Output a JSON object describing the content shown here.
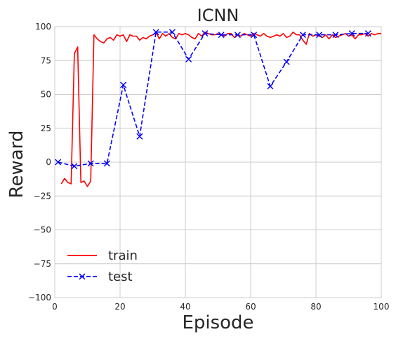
{
  "chart_data": {
    "type": "line",
    "title": "ICNN",
    "xlabel": "Episode",
    "ylabel": "Reward",
    "xlim": [
      0,
      100
    ],
    "ylim": [
      -100,
      100
    ],
    "xticks": [
      0,
      20,
      40,
      60,
      80,
      100
    ],
    "yticks": [
      -100,
      -75,
      -50,
      -25,
      0,
      25,
      50,
      75,
      100
    ],
    "xtick_labels": [
      "0",
      "20",
      "40",
      "60",
      "80",
      "100"
    ],
    "ytick_labels": [
      "−100",
      "−75",
      "−50",
      "−25",
      "0",
      "25",
      "50",
      "75",
      "100"
    ],
    "grid": true,
    "legend_position": "lower-left",
    "series": [
      {
        "name": "train",
        "color": "#ff0000",
        "style": "solid",
        "marker": "none",
        "x": [
          2,
          3,
          4,
          5,
          6,
          7,
          8,
          9,
          10,
          11,
          12,
          13,
          14,
          15,
          16,
          17,
          18,
          19,
          20,
          21,
          22,
          23,
          24,
          25,
          26,
          27,
          28,
          29,
          30,
          31,
          32,
          33,
          34,
          35,
          36,
          37,
          38,
          39,
          40,
          41,
          42,
          43,
          44,
          45,
          46,
          47,
          48,
          49,
          50,
          51,
          52,
          53,
          54,
          55,
          56,
          57,
          58,
          59,
          60,
          61,
          62,
          63,
          64,
          65,
          66,
          67,
          68,
          69,
          70,
          71,
          72,
          73,
          74,
          75,
          76,
          77,
          78,
          79,
          80,
          81,
          82,
          83,
          84,
          85,
          86,
          87,
          88,
          89,
          90,
          91,
          92,
          93,
          94,
          95,
          96,
          97,
          98,
          99,
          100
        ],
        "y": [
          -16,
          -12,
          -15,
          -16,
          80,
          85,
          -15,
          -14,
          -18,
          -14,
          94,
          91,
          89,
          88,
          91,
          92,
          90,
          94,
          93,
          94,
          89,
          94,
          93,
          93,
          90,
          92,
          91,
          93,
          94,
          96,
          91,
          95,
          93,
          95,
          92,
          91,
          95,
          94,
          95,
          94,
          92,
          91,
          95,
          93,
          96,
          95,
          94,
          94,
          95,
          94,
          93,
          95,
          95,
          92,
          94,
          93,
          95,
          94,
          93,
          95,
          94,
          93,
          95,
          93,
          92,
          93,
          94,
          93,
          95,
          92,
          93,
          96,
          94,
          94,
          90,
          87,
          95,
          93,
          94,
          93,
          92,
          94,
          91,
          94,
          92,
          93,
          94,
          95,
          93,
          94,
          91,
          94,
          94,
          95,
          93,
          95,
          94,
          95,
          95
        ]
      },
      {
        "name": "test",
        "color": "#0000ff",
        "style": "dashed",
        "marker": "x",
        "x": [
          1,
          6,
          11,
          16,
          21,
          26,
          31,
          36,
          41,
          46,
          51,
          56,
          61,
          66,
          71,
          76,
          81,
          86,
          91,
          96
        ],
        "y": [
          0,
          -3,
          -1,
          -1,
          57,
          19,
          96,
          96,
          76,
          95,
          94,
          94,
          94,
          56,
          74,
          94,
          94,
          94,
          95,
          95
        ]
      }
    ]
  }
}
